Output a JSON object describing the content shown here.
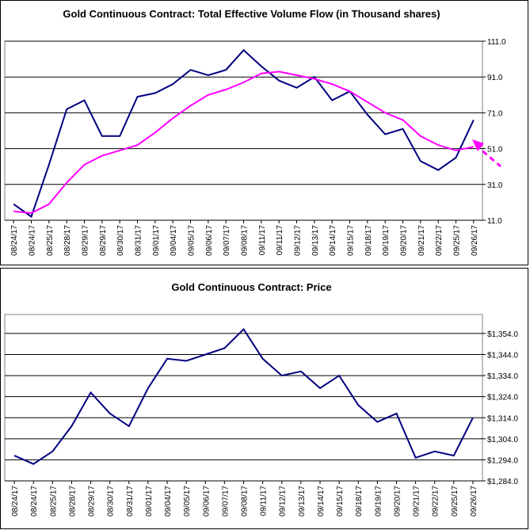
{
  "chart_data": [
    {
      "type": "line",
      "title": "Gold Continuous Contract: Total Effective Volume Flow (in Thousand shares)",
      "categories": [
        "08/24/17",
        "08/24/17",
        "08/25/17",
        "08/28/17",
        "08/29/17",
        "08/29/17",
        "08/30/17",
        "08/31/17",
        "09/01/17",
        "09/04/17",
        "09/05/17",
        "09/06/17",
        "09/07/17",
        "09/08/17",
        "09/11/17",
        "09/11/17",
        "09/12/17",
        "09/13/17",
        "09/14/17",
        "09/15/17",
        "09/18/17",
        "09/19/17",
        "09/20/17",
        "09/21/17",
        "09/22/17",
        "09/25/17",
        "09/26/17"
      ],
      "series": [
        {
          "color": "#000080",
          "values": [
            20,
            13,
            42,
            73,
            78,
            58,
            58,
            80,
            82,
            87,
            95,
            92,
            95,
            106,
            97,
            89,
            85,
            91,
            78,
            83,
            70,
            59,
            62,
            44,
            39,
            46,
            67
          ]
        },
        {
          "color": "#ff00ff",
          "values": [
            16,
            15,
            20,
            32,
            42,
            47,
            50,
            53,
            60,
            68,
            75,
            81,
            84,
            88,
            93,
            94,
            92,
            90,
            87,
            83,
            77,
            71,
            67,
            58,
            53,
            50,
            52
          ]
        }
      ],
      "ylim": [
        11,
        111
      ],
      "yticks": [
        {
          "value": 11,
          "label": "11.0"
        },
        {
          "value": 31,
          "label": "31.0"
        },
        {
          "value": 51,
          "label": "51.0"
        },
        {
          "value": 71,
          "label": "71.0"
        },
        {
          "value": 91,
          "label": "91.0"
        },
        {
          "value": 111,
          "label": "111.0"
        }
      ],
      "grid": true
    },
    {
      "type": "line",
      "title": "Gold Continuous Contract: Price",
      "categories": [
        "08/24/17",
        "08/24/17",
        "08/25/17",
        "08/28/17",
        "08/29/17",
        "08/30/17",
        "08/31/17",
        "09/01/17",
        "09/04/17",
        "09/05/17",
        "09/06/17",
        "09/07/17",
        "09/08/17",
        "09/11/17",
        "09/12/17",
        "09/13/17",
        "09/14/17",
        "09/15/17",
        "09/18/17",
        "09/19/17",
        "09/20/17",
        "09/21/17",
        "09/22/17",
        "09/25/17",
        "09/26/17"
      ],
      "series": [
        {
          "color": "#000080",
          "values": [
            1296,
            1292,
            1298,
            1310,
            1326,
            1316,
            1310,
            1328,
            1342,
            1341,
            1344,
            1347,
            1356,
            1342,
            1334,
            1336,
            1328,
            1334,
            1320,
            1312,
            1316,
            1295,
            1298,
            1296,
            1314
          ]
        }
      ],
      "ylim": [
        1284,
        1363
      ],
      "yticks": [
        {
          "value": 1284,
          "label": "$1,284.0"
        },
        {
          "value": 1294,
          "label": "$1,294.0"
        },
        {
          "value": 1304,
          "label": "$1,304.0"
        },
        {
          "value": 1314,
          "label": "$1,314.0"
        },
        {
          "value": 1324,
          "label": "$1,324.0"
        },
        {
          "value": 1334,
          "label": "$1,334.0"
        },
        {
          "value": 1344,
          "label": "$1,344.0"
        },
        {
          "value": 1354,
          "label": "$1,354.0"
        }
      ],
      "grid": true
    }
  ]
}
